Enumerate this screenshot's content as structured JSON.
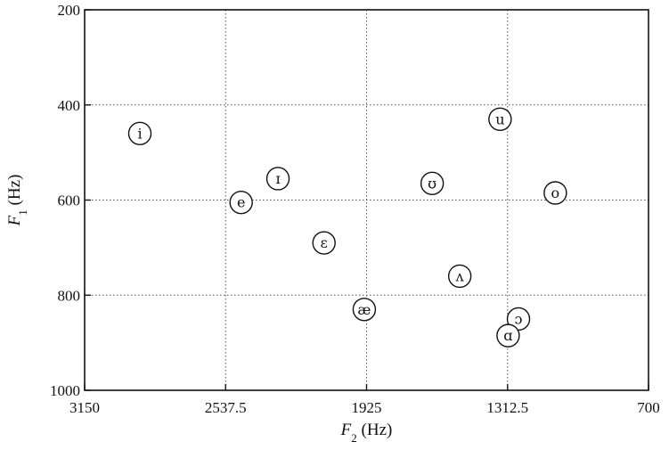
{
  "chart_data": {
    "type": "scatter",
    "title": "",
    "xlabel": {
      "main": "F",
      "sub": "2",
      "unit": " (Hz)"
    },
    "ylabel": {
      "main": "F",
      "sub": "1",
      "unit": " (Hz)"
    },
    "xlim": [
      3150,
      700
    ],
    "ylim": [
      1000,
      200
    ],
    "x_reversed": true,
    "y_reversed": true,
    "x_ticks": [
      3150,
      2537.5,
      1925,
      1312.5,
      700
    ],
    "x_tick_labels": [
      "3150",
      "2537.5",
      "1925",
      "1312.5",
      "700"
    ],
    "y_ticks": [
      200,
      400,
      600,
      800,
      1000
    ],
    "y_tick_labels": [
      "200",
      "400",
      "600",
      "800",
      "1000"
    ],
    "grid": true,
    "points": [
      {
        "label": "i",
        "x": 2910,
        "y": 460
      },
      {
        "label": "e",
        "x": 2470,
        "y": 605
      },
      {
        "label": "ɪ",
        "x": 2310,
        "y": 555
      },
      {
        "label": "ɛ",
        "x": 2110,
        "y": 690
      },
      {
        "label": "æ",
        "x": 1935,
        "y": 830
      },
      {
        "label": "ʊ",
        "x": 1640,
        "y": 565
      },
      {
        "label": "ʌ",
        "x": 1520,
        "y": 760
      },
      {
        "label": "u",
        "x": 1345,
        "y": 430
      },
      {
        "label": "o",
        "x": 1105,
        "y": 585
      },
      {
        "label": "ɔ",
        "x": 1265,
        "y": 850
      },
      {
        "label": "ɑ",
        "x": 1310,
        "y": 885
      }
    ]
  }
}
